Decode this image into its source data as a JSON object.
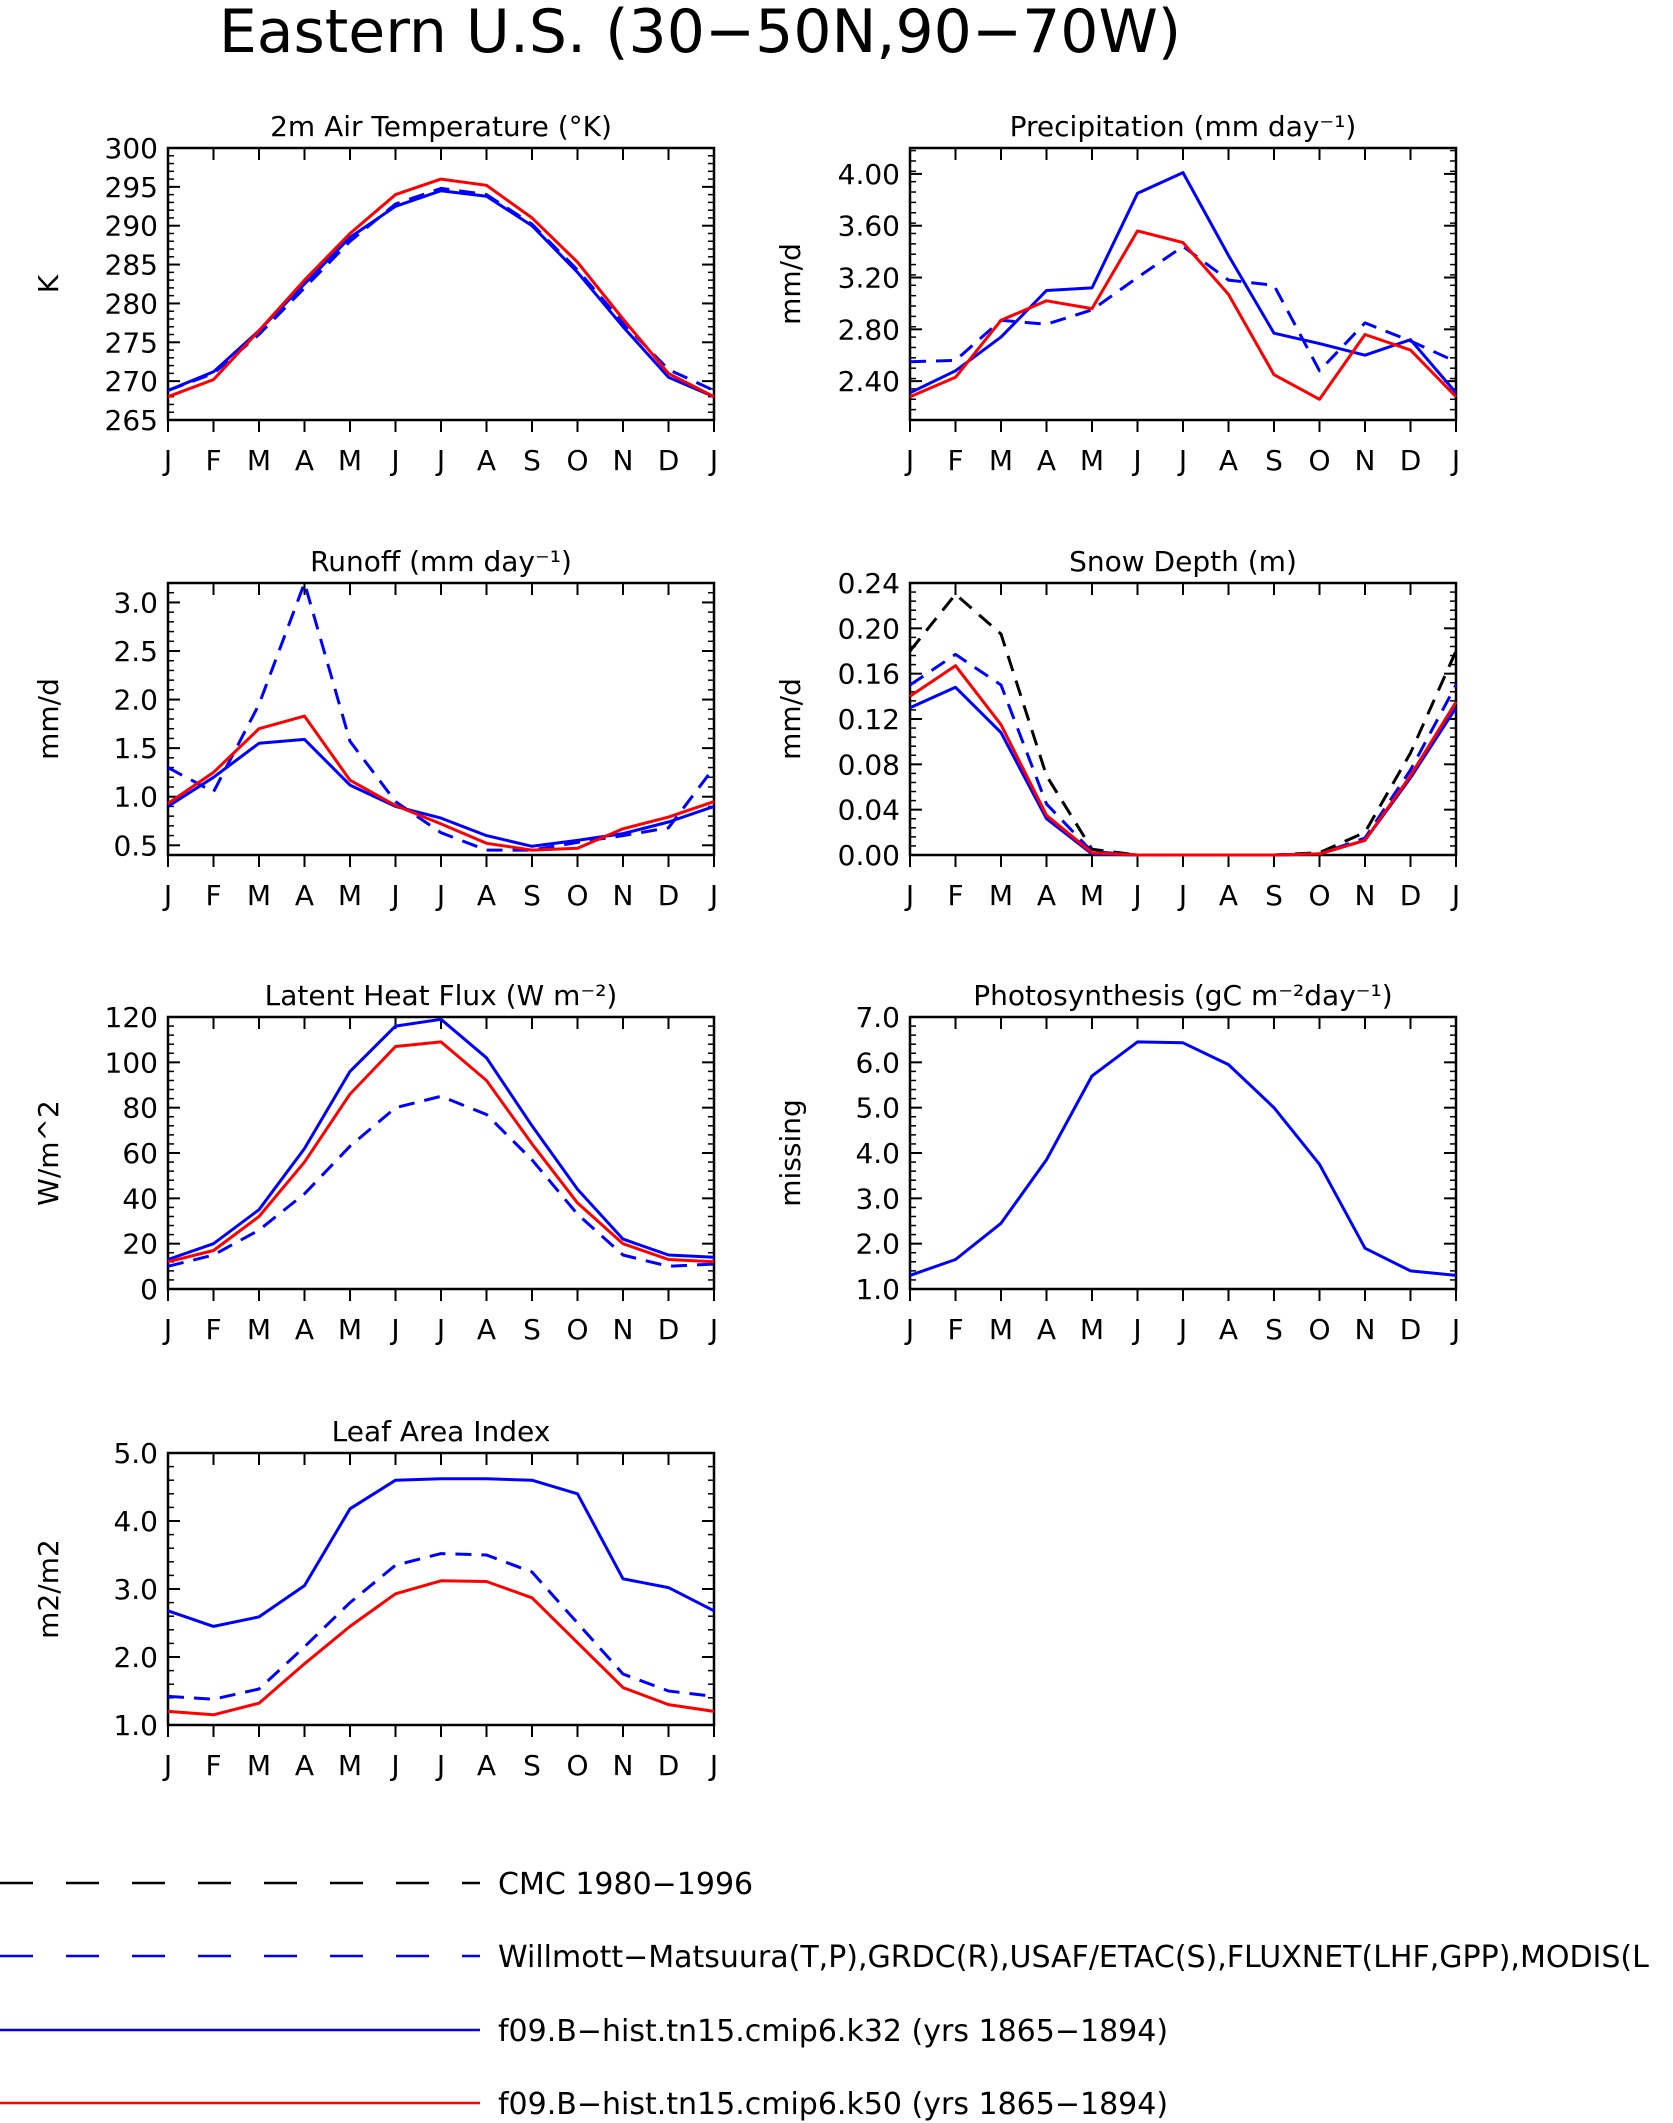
{
  "title": "Eastern U.S. (30−50N,90−70W)",
  "months": [
    "J",
    "F",
    "M",
    "A",
    "M",
    "J",
    "J",
    "A",
    "S",
    "O",
    "N",
    "D",
    "J"
  ],
  "colors": {
    "obs_black": "#000000",
    "obs_blue": "#0000ff",
    "model_blue": "#0000ff",
    "model_red": "#ff0000"
  },
  "legend": [
    {
      "label": "CMC 1980−1996",
      "color": "#000000",
      "style": "dashed"
    },
    {
      "label": "Willmott−Matsuura(T,P),GRDC(R),USAF/ETAC(S),FLUXNET(LHF,GPP),MODIS(L",
      "color": "#0000ff",
      "style": "dashed"
    },
    {
      "label": "f09.B−hist.tn15.cmip6.k32 (yrs 1865−1894)",
      "color": "#0000ff",
      "style": "solid"
    },
    {
      "label": "f09.B−hist.tn15.cmip6.k50 (yrs 1865−1894)",
      "color": "#ff0000",
      "style": "solid"
    }
  ],
  "chart_data": [
    {
      "type": "line",
      "title": "2m Air Temperature (°K)",
      "ylabel": "K",
      "ylim": [
        265,
        300
      ],
      "yticks": [
        "265",
        "270",
        "275",
        "280",
        "285",
        "290",
        "295",
        "300"
      ],
      "x": [
        "J",
        "F",
        "M",
        "A",
        "M",
        "J",
        "J",
        "A",
        "S",
        "O",
        "N",
        "D",
        "J"
      ],
      "series": [
        {
          "key": "obs",
          "color": "#0000ff",
          "dash": true,
          "values": [
            268.8,
            271.0,
            276.0,
            282.0,
            288.0,
            292.8,
            294.8,
            294.0,
            290.2,
            284.3,
            277.5,
            271.5,
            268.8
          ]
        },
        {
          "key": "k32",
          "color": "#0000ff",
          "dash": false,
          "values": [
            268.8,
            271.2,
            276.5,
            282.5,
            288.5,
            292.5,
            294.5,
            293.8,
            290.0,
            284.0,
            277.0,
            270.5,
            268.0
          ]
        },
        {
          "key": "k50",
          "color": "#ff0000",
          "dash": false,
          "values": [
            268.0,
            270.2,
            276.5,
            283.0,
            289.0,
            294.0,
            296.0,
            295.2,
            291.0,
            285.3,
            278.0,
            271.0,
            268.0
          ]
        }
      ]
    },
    {
      "type": "line",
      "title": "Precipitation (mm day⁻¹)",
      "ylabel": "mm/d",
      "ylim": [
        2.1,
        4.2
      ],
      "yticks": [
        "2.40",
        "2.80",
        "3.20",
        "3.60",
        "4.00"
      ],
      "ytickvals": [
        2.4,
        2.8,
        3.2,
        3.6,
        4.0
      ],
      "x": [
        "J",
        "F",
        "M",
        "A",
        "M",
        "J",
        "J",
        "A",
        "S",
        "O",
        "N",
        "D",
        "J"
      ],
      "series": [
        {
          "key": "obs",
          "color": "#0000ff",
          "dash": true,
          "values": [
            2.55,
            2.56,
            2.87,
            2.84,
            2.95,
            3.2,
            3.44,
            3.18,
            3.14,
            2.48,
            2.85,
            2.71,
            2.55
          ]
        },
        {
          "key": "k32",
          "color": "#0000ff",
          "dash": false,
          "values": [
            2.31,
            2.48,
            2.74,
            3.1,
            3.12,
            3.85,
            4.01,
            3.37,
            2.77,
            2.69,
            2.6,
            2.72,
            2.31
          ]
        },
        {
          "key": "k50",
          "color": "#ff0000",
          "dash": false,
          "values": [
            2.28,
            2.43,
            2.87,
            3.02,
            2.96,
            3.56,
            3.47,
            3.07,
            2.45,
            2.26,
            2.76,
            2.64,
            2.28
          ]
        }
      ]
    },
    {
      "type": "line",
      "title": "Runoff (mm day⁻¹)",
      "ylabel": "mm/d",
      "ylim": [
        0.4,
        3.2
      ],
      "yticks": [
        "0.5",
        "1.0",
        "1.5",
        "2.0",
        "2.5",
        "3.0"
      ],
      "ytickvals": [
        0.5,
        1.0,
        1.5,
        2.0,
        2.5,
        3.0
      ],
      "x": [
        "J",
        "F",
        "M",
        "A",
        "M",
        "J",
        "J",
        "A",
        "S",
        "O",
        "N",
        "D",
        "J"
      ],
      "series": [
        {
          "key": "obs",
          "color": "#0000ff",
          "dash": true,
          "values": [
            1.3,
            1.05,
            1.95,
            3.2,
            1.57,
            0.95,
            0.63,
            0.45,
            0.45,
            0.53,
            0.6,
            0.68,
            1.3
          ]
        },
        {
          "key": "k32",
          "color": "#0000ff",
          "dash": false,
          "values": [
            0.9,
            1.2,
            1.55,
            1.59,
            1.12,
            0.9,
            0.78,
            0.6,
            0.49,
            0.55,
            0.62,
            0.74,
            0.9
          ]
        },
        {
          "key": "k50",
          "color": "#ff0000",
          "dash": false,
          "values": [
            0.93,
            1.25,
            1.7,
            1.83,
            1.17,
            0.91,
            0.72,
            0.52,
            0.45,
            0.47,
            0.67,
            0.79,
            0.95
          ]
        }
      ]
    },
    {
      "type": "line",
      "title": "Snow Depth (m)",
      "ylabel": "mm/d",
      "ylim": [
        0.0,
        0.24
      ],
      "yticks": [
        "0.00",
        "0.04",
        "0.08",
        "0.12",
        "0.16",
        "0.20",
        "0.24"
      ],
      "ytickvals": [
        0.0,
        0.04,
        0.08,
        0.12,
        0.16,
        0.2,
        0.24
      ],
      "x": [
        "J",
        "F",
        "M",
        "A",
        "M",
        "J",
        "J",
        "A",
        "S",
        "O",
        "N",
        "D",
        "J"
      ],
      "series": [
        {
          "key": "cmc",
          "color": "#000000",
          "dash": true,
          "values": [
            0.18,
            0.23,
            0.195,
            0.07,
            0.005,
            0,
            0,
            0,
            0,
            0.002,
            0.02,
            0.09,
            0.18
          ]
        },
        {
          "key": "obs",
          "color": "#0000ff",
          "dash": true,
          "values": [
            0.15,
            0.177,
            0.15,
            0.045,
            0.003,
            0,
            0,
            0,
            0,
            0.001,
            0.015,
            0.075,
            0.15
          ]
        },
        {
          "key": "k32",
          "color": "#0000ff",
          "dash": false,
          "values": [
            0.13,
            0.148,
            0.108,
            0.032,
            0.001,
            0,
            0,
            0,
            0,
            0.001,
            0.013,
            0.068,
            0.13
          ]
        },
        {
          "key": "k50",
          "color": "#ff0000",
          "dash": false,
          "values": [
            0.14,
            0.167,
            0.115,
            0.035,
            0.002,
            0,
            0,
            0,
            0,
            0.001,
            0.013,
            0.07,
            0.135
          ]
        }
      ]
    },
    {
      "type": "line",
      "title": "Latent Heat Flux (W m⁻²)",
      "ylabel": "W/m^2",
      "ylim": [
        0,
        120
      ],
      "yticks": [
        "0",
        "20",
        "40",
        "60",
        "80",
        "100",
        "120"
      ],
      "ytickvals": [
        0,
        20,
        40,
        60,
        80,
        100,
        120
      ],
      "x": [
        "J",
        "F",
        "M",
        "A",
        "M",
        "J",
        "J",
        "A",
        "S",
        "O",
        "N",
        "D",
        "J"
      ],
      "series": [
        {
          "key": "obs",
          "color": "#0000ff",
          "dash": true,
          "values": [
            10,
            15,
            26,
            42,
            63,
            80,
            85,
            77,
            57,
            33,
            15,
            10,
            11
          ]
        },
        {
          "key": "k32",
          "color": "#0000ff",
          "dash": false,
          "values": [
            13,
            20,
            35,
            62,
            96,
            116,
            119,
            102,
            72,
            44,
            22,
            15,
            14
          ]
        },
        {
          "key": "k50",
          "color": "#ff0000",
          "dash": false,
          "values": [
            12,
            17,
            32,
            56,
            86,
            107,
            109,
            92,
            64,
            38,
            20,
            13,
            12
          ]
        }
      ]
    },
    {
      "type": "line",
      "title": "Photosynthesis (gC m⁻²day⁻¹)",
      "ylabel": "missing",
      "ylim": [
        1.0,
        7.0
      ],
      "yticks": [
        "1.0",
        "2.0",
        "3.0",
        "4.0",
        "5.0",
        "6.0",
        "7.0"
      ],
      "ytickvals": [
        1.0,
        2.0,
        3.0,
        4.0,
        5.0,
        6.0,
        7.0
      ],
      "x": [
        "J",
        "F",
        "M",
        "A",
        "M",
        "J",
        "J",
        "A",
        "S",
        "O",
        "N",
        "D",
        "J"
      ],
      "series": [
        {
          "key": "k32",
          "color": "#0000ff",
          "dash": false,
          "values": [
            1.3,
            1.65,
            2.45,
            3.85,
            5.7,
            6.45,
            6.43,
            5.95,
            5.0,
            3.75,
            1.9,
            1.4,
            1.3
          ]
        }
      ]
    },
    {
      "type": "line",
      "title": "Leaf Area Index",
      "ylabel": "m2/m2",
      "ylim": [
        1.0,
        5.0
      ],
      "yticks": [
        "1.0",
        "2.0",
        "3.0",
        "4.0",
        "5.0"
      ],
      "ytickvals": [
        1.0,
        2.0,
        3.0,
        4.0,
        5.0
      ],
      "x": [
        "J",
        "F",
        "M",
        "A",
        "M",
        "J",
        "J",
        "A",
        "S",
        "O",
        "N",
        "D",
        "J"
      ],
      "series": [
        {
          "key": "obs",
          "color": "#0000ff",
          "dash": true,
          "values": [
            1.42,
            1.38,
            1.53,
            2.15,
            2.8,
            3.35,
            3.52,
            3.5,
            3.25,
            2.5,
            1.75,
            1.5,
            1.42
          ]
        },
        {
          "key": "k32",
          "color": "#0000ff",
          "dash": false,
          "values": [
            2.68,
            2.45,
            2.59,
            3.05,
            4.18,
            4.6,
            4.62,
            4.62,
            4.6,
            4.4,
            3.15,
            3.02,
            2.68
          ]
        },
        {
          "key": "k50",
          "color": "#ff0000",
          "dash": false,
          "values": [
            1.2,
            1.15,
            1.32,
            1.9,
            2.45,
            2.93,
            3.12,
            3.11,
            2.87,
            2.21,
            1.55,
            1.3,
            1.2
          ]
        }
      ]
    }
  ]
}
